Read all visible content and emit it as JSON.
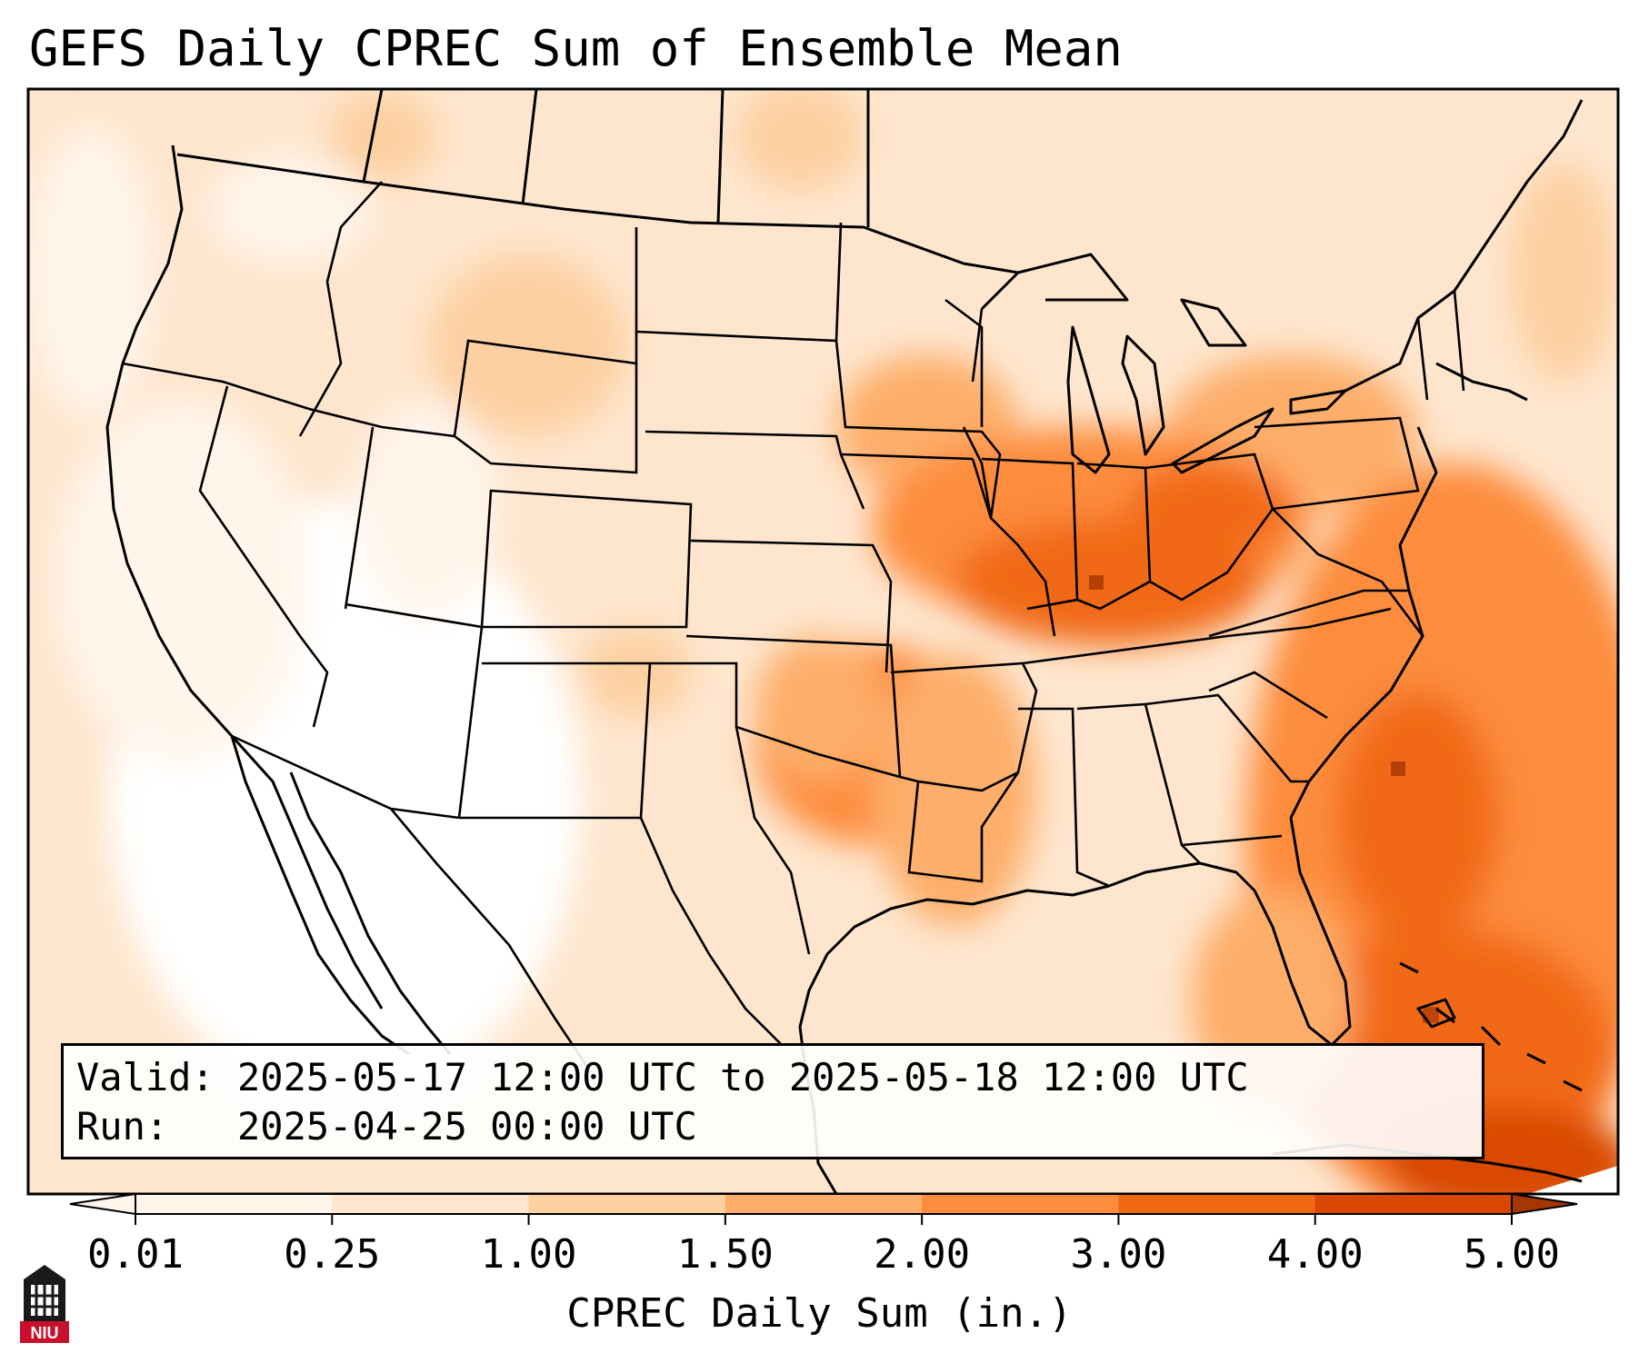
{
  "title": "GEFS Daily CPREC Sum of Ensemble Mean",
  "info": {
    "valid_label": "Valid:",
    "valid_value": "2025-05-17 12:00 UTC to 2025-05-18 12:00 UTC",
    "run_label": "Run:",
    "run_value": "2025-04-25 00:00 UTC"
  },
  "colorbar": {
    "label": "CPREC Daily Sum (in.)",
    "ticks": [
      "0.01",
      "0.25",
      "1.00",
      "1.50",
      "2.00",
      "3.00",
      "4.00",
      "5.00"
    ],
    "colors": [
      "#fff5eb",
      "#fee6ce",
      "#fdd0a2",
      "#fdae6b",
      "#fd8d3c",
      "#f16913",
      "#d94801",
      "#a63603"
    ]
  },
  "logo": {
    "text": "NIU",
    "color": "#c8102e"
  }
}
